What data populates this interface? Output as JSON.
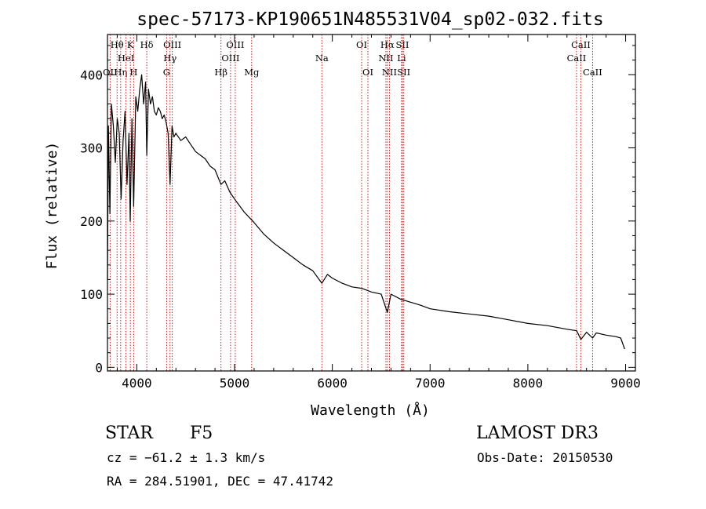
{
  "chart_data": {
    "type": "line",
    "title": "spec-57173-KP190651N485531V04_sp02-032.fits",
    "xlabel": "Wavelength (Å)",
    "ylabel": "Flux (relative)",
    "xlim": [
      3700,
      9100
    ],
    "ylim": [
      -5,
      455
    ],
    "x_ticks": [
      4000,
      5000,
      6000,
      7000,
      8000,
      9000
    ],
    "y_ticks": [
      0,
      100,
      200,
      300,
      400
    ],
    "x_tick_labels": [
      "4000",
      "5000",
      "6000",
      "7000",
      "8000",
      "9000"
    ],
    "y_tick_labels": [
      "0",
      "100",
      "200",
      "300",
      "400"
    ],
    "line_color": "#000000",
    "marker_color": "#cc0000",
    "series": [
      {
        "name": "flux",
        "x": [
          3700,
          3710,
          3725,
          3740,
          3760,
          3780,
          3800,
          3820,
          3840,
          3860,
          3880,
          3900,
          3920,
          3933,
          3950,
          3968,
          3990,
          4010,
          4030,
          4050,
          4070,
          4090,
          4102,
          4120,
          4140,
          4160,
          4180,
          4200,
          4220,
          4240,
          4260,
          4280,
          4300,
          4320,
          4340,
          4360,
          4380,
          4400,
          4450,
          4500,
          4550,
          4600,
          4650,
          4700,
          4750,
          4800,
          4861,
          4900,
          4950,
          5000,
          5100,
          5200,
          5300,
          5400,
          5500,
          5600,
          5700,
          5800,
          5893,
          5950,
          6000,
          6100,
          6200,
          6300,
          6400,
          6500,
          6563,
          6600,
          6700,
          6800,
          6900,
          7000,
          7200,
          7400,
          7600,
          7800,
          8000,
          8200,
          8400,
          8500,
          8542,
          8600,
          8662,
          8700,
          8800,
          8900,
          8950,
          8990
        ],
        "y": [
          120,
          330,
          210,
          360,
          330,
          280,
          340,
          320,
          230,
          310,
          350,
          250,
          320,
          200,
          340,
          220,
          370,
          350,
          380,
          400,
          360,
          390,
          290,
          380,
          360,
          370,
          350,
          345,
          355,
          350,
          340,
          345,
          335,
          320,
          250,
          330,
          315,
          320,
          310,
          315,
          305,
          295,
          290,
          285,
          275,
          270,
          250,
          255,
          240,
          230,
          212,
          198,
          182,
          170,
          160,
          150,
          140,
          132,
          115,
          127,
          122,
          115,
          110,
          108,
          103,
          100,
          75,
          100,
          93,
          89,
          85,
          80,
          76,
          73,
          70,
          65,
          60,
          57,
          52,
          50,
          38,
          48,
          40,
          47,
          44,
          42,
          40,
          25
        ]
      }
    ],
    "line_markers": [
      {
        "label": "OII",
        "wavelength": 3727,
        "row": 3
      },
      {
        "label": "Hθ",
        "wavelength": 3798,
        "row": 1
      },
      {
        "label": "Hη",
        "wavelength": 3835,
        "row": 3
      },
      {
        "label": "HeI",
        "wavelength": 3889,
        "row": 2
      },
      {
        "label": "K",
        "wavelength": 3934,
        "row": 1
      },
      {
        "label": "H",
        "wavelength": 3968,
        "row": 3
      },
      {
        "label": "Hδ",
        "wavelength": 4102,
        "row": 1
      },
      {
        "label": "OIII",
        "wavelength": 4363,
        "row": 1
      },
      {
        "label": "Hγ",
        "wavelength": 4340,
        "row": 2
      },
      {
        "label": "G",
        "wavelength": 4305,
        "row": 3
      },
      {
        "label": "Hβ",
        "wavelength": 4861,
        "row": 3
      },
      {
        "label": "OIII",
        "wavelength": 5007,
        "row": 1
      },
      {
        "label": "OIII",
        "wavelength": 4959,
        "row": 2
      },
      {
        "label": "Mg",
        "wavelength": 5175,
        "row": 3
      },
      {
        "label": "Na",
        "wavelength": 5893,
        "row": 2
      },
      {
        "label": "OI",
        "wavelength": 6300,
        "row": 1
      },
      {
        "label": "OI",
        "wavelength": 6364,
        "row": 3
      },
      {
        "label": "Hα",
        "wavelength": 6563,
        "row": 1
      },
      {
        "label": "NII",
        "wavelength": 6548,
        "row": 2
      },
      {
        "label": "NII",
        "wavelength": 6584,
        "row": 3
      },
      {
        "label": "SII",
        "wavelength": 6717,
        "row": 1
      },
      {
        "label": "Li",
        "wavelength": 6708,
        "row": 2
      },
      {
        "label": "SII",
        "wavelength": 6731,
        "row": 3
      },
      {
        "label": "CaII",
        "wavelength": 8542,
        "row": 1
      },
      {
        "label": "CaII",
        "wavelength": 8498,
        "row": 2
      },
      {
        "label": "CaII",
        "wavelength": 8662,
        "row": 3
      }
    ]
  },
  "info": {
    "class_label": "STAR",
    "subclass": "F5",
    "survey": "LAMOST DR3",
    "redshift_line": "cz = −61.2 ± 1.3 km/s",
    "obs_date": "Obs-Date: 20150530",
    "coords": "RA = 284.51901, DEC =  47.41742"
  }
}
